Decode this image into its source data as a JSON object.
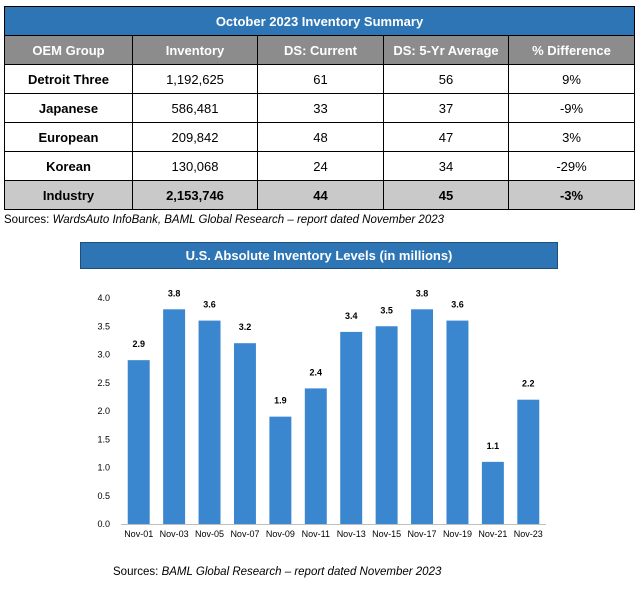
{
  "table": {
    "title": "October 2023 Inventory Summary",
    "headers": [
      "OEM Group",
      "Inventory",
      "DS: Current",
      "DS: 5-Yr Average",
      "% Difference"
    ],
    "rows": [
      [
        "Detroit Three",
        "1,192,625",
        "61",
        "56",
        "9%"
      ],
      [
        "Japanese",
        "586,481",
        "33",
        "37",
        "-9%"
      ],
      [
        "European",
        "209,842",
        "48",
        "47",
        "3%"
      ],
      [
        "Korean",
        "130,068",
        "24",
        "34",
        "-29%"
      ]
    ],
    "total_row": [
      "Industry",
      "2,153,746",
      "44",
      "45",
      "-3%"
    ],
    "source_prefix": "Sources: ",
    "source_italic": "WardsAuto InfoBank, BAML Global Research – report dated November 2023"
  },
  "chart_source": {
    "prefix": "Sources: ",
    "italic": "BAML Global Research – report dated November 2023"
  },
  "colors": {
    "header_blue": "#2E75B6",
    "header_gray": "#8C8C8C",
    "total_gray": "#C9C9C9",
    "bar": "#3A87CF"
  },
  "chart_data": {
    "type": "bar",
    "title": "U.S. Absolute Inventory Levels (in millions)",
    "categories": [
      "Nov-01",
      "Nov-03",
      "Nov-05",
      "Nov-07",
      "Nov-09",
      "Nov-11",
      "Nov-13",
      "Nov-15",
      "Nov-17",
      "Nov-19",
      "Nov-21",
      "Nov-23"
    ],
    "values": [
      2.9,
      3.8,
      3.6,
      3.2,
      1.9,
      2.4,
      3.4,
      3.5,
      3.8,
      3.6,
      1.1,
      2.2
    ],
    "data_labels": [
      "2.9",
      "3.8",
      "3.6",
      "3.2",
      "1.9",
      "2.4",
      "3.4",
      "3.5",
      "3.8",
      "3.6",
      "1.1",
      "2.2"
    ],
    "y_ticks": [
      "0.0",
      "0.5",
      "1.0",
      "1.5",
      "2.0",
      "2.5",
      "3.0",
      "3.5",
      "4.0"
    ],
    "ylim": [
      0,
      4.0
    ],
    "xlabel": "",
    "ylabel": "",
    "grid": false,
    "legend": "none"
  }
}
